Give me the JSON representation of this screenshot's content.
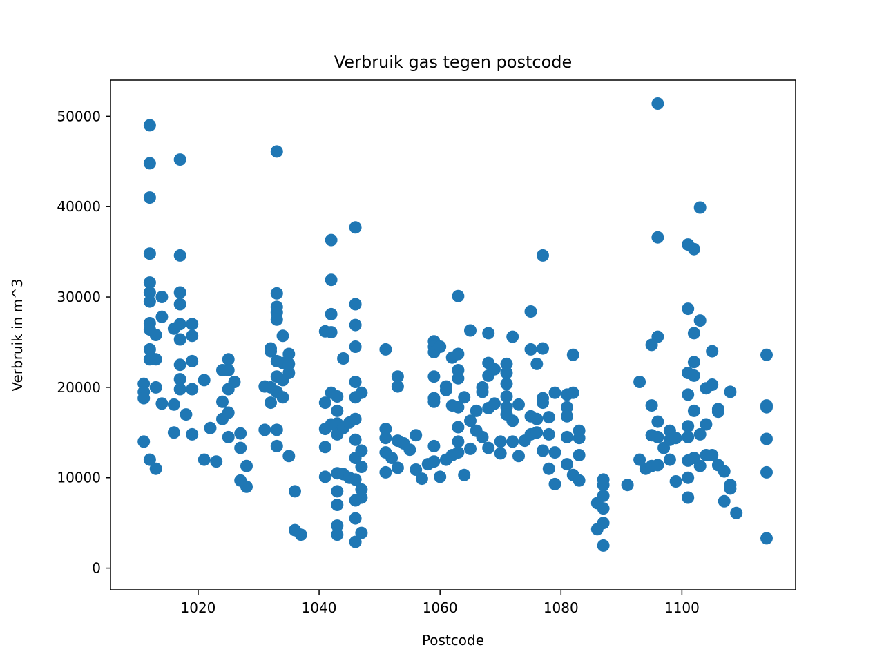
{
  "chart_data": {
    "type": "scatter",
    "title": "Verbruik gas tegen postcode",
    "xlabel": "Postcode",
    "ylabel": "Verbruik in m^3",
    "xlim": [
      1005.5,
      1118.8
    ],
    "ylim": [
      -2400,
      54000
    ],
    "xticks": [
      1020,
      1040,
      1060,
      1080,
      1100
    ],
    "yticks": [
      0,
      10000,
      20000,
      30000,
      40000,
      50000
    ],
    "grid": false,
    "legend": "none",
    "marker_color": "#1f77b4",
    "series": [
      {
        "points": [
          [
            1012,
            49000
          ],
          [
            1012,
            44800
          ],
          [
            1012,
            41000
          ],
          [
            1012,
            34800
          ],
          [
            1012,
            31600
          ],
          [
            1012,
            30500
          ],
          [
            1012,
            29500
          ],
          [
            1012,
            27100
          ],
          [
            1012,
            26400
          ],
          [
            1012,
            24200
          ],
          [
            1012,
            23100
          ],
          [
            1011,
            20400
          ],
          [
            1011,
            19500
          ],
          [
            1011,
            18800
          ],
          [
            1013,
            25800
          ],
          [
            1013,
            23100
          ],
          [
            1014,
            30000
          ],
          [
            1014,
            27800
          ],
          [
            1014,
            18200
          ],
          [
            1013,
            20000
          ],
          [
            1011,
            14000
          ],
          [
            1012,
            12000
          ],
          [
            1013,
            11000
          ],
          [
            1016,
            26500
          ],
          [
            1017,
            45200
          ],
          [
            1017,
            34600
          ],
          [
            1017,
            30500
          ],
          [
            1017,
            29200
          ],
          [
            1017,
            27000
          ],
          [
            1017,
            25300
          ],
          [
            1017,
            22500
          ],
          [
            1017,
            20900
          ],
          [
            1017,
            19800
          ],
          [
            1016,
            18100
          ],
          [
            1016,
            15000
          ],
          [
            1019,
            27000
          ],
          [
            1019,
            25700
          ],
          [
            1019,
            22900
          ],
          [
            1019,
            19800
          ],
          [
            1018,
            17000
          ],
          [
            1019,
            14800
          ],
          [
            1021,
            20800
          ],
          [
            1021,
            12000
          ],
          [
            1022,
            15500
          ],
          [
            1023,
            11800
          ],
          [
            1024,
            21900
          ],
          [
            1024,
            18400
          ],
          [
            1024,
            16500
          ],
          [
            1025,
            23100
          ],
          [
            1025,
            21900
          ],
          [
            1025,
            19800
          ],
          [
            1025,
            17200
          ],
          [
            1025,
            14500
          ],
          [
            1026,
            20600
          ],
          [
            1027,
            14900
          ],
          [
            1027,
            13300
          ],
          [
            1028,
            11300
          ],
          [
            1028,
            9000
          ],
          [
            1027,
            9700
          ],
          [
            1031,
            20100
          ],
          [
            1031,
            15300
          ],
          [
            1032,
            24300
          ],
          [
            1032,
            24000
          ],
          [
            1032,
            20000
          ],
          [
            1032,
            18300
          ],
          [
            1033,
            46100
          ],
          [
            1033,
            30400
          ],
          [
            1033,
            28900
          ],
          [
            1033,
            28300
          ],
          [
            1033,
            27500
          ],
          [
            1033,
            22900
          ],
          [
            1033,
            21200
          ],
          [
            1033,
            19500
          ],
          [
            1033,
            15300
          ],
          [
            1033,
            13500
          ],
          [
            1034,
            25700
          ],
          [
            1034,
            22700
          ],
          [
            1034,
            20800
          ],
          [
            1034,
            18900
          ],
          [
            1035,
            23700
          ],
          [
            1035,
            22600
          ],
          [
            1035,
            21600
          ],
          [
            1035,
            12400
          ],
          [
            1036,
            8500
          ],
          [
            1036,
            4200
          ],
          [
            1037,
            3700
          ],
          [
            1041,
            26200
          ],
          [
            1041,
            18300
          ],
          [
            1041,
            15400
          ],
          [
            1041,
            13400
          ],
          [
            1041,
            10100
          ],
          [
            1042,
            36300
          ],
          [
            1042,
            31900
          ],
          [
            1042,
            28100
          ],
          [
            1042,
            26100
          ],
          [
            1042,
            19400
          ],
          [
            1042,
            15900
          ],
          [
            1043,
            19000
          ],
          [
            1043,
            17400
          ],
          [
            1043,
            16000
          ],
          [
            1043,
            14800
          ],
          [
            1043,
            10500
          ],
          [
            1043,
            8500
          ],
          [
            1043,
            7000
          ],
          [
            1043,
            4700
          ],
          [
            1043,
            3700
          ],
          [
            1044,
            23200
          ],
          [
            1044,
            15500
          ],
          [
            1044,
            10400
          ],
          [
            1045,
            16100
          ],
          [
            1045,
            10000
          ],
          [
            1046,
            37700
          ],
          [
            1046,
            29200
          ],
          [
            1046,
            26900
          ],
          [
            1046,
            24500
          ],
          [
            1046,
            20600
          ],
          [
            1046,
            18900
          ],
          [
            1046,
            16500
          ],
          [
            1046,
            14200
          ],
          [
            1046,
            12200
          ],
          [
            1046,
            9800
          ],
          [
            1046,
            7500
          ],
          [
            1046,
            5500
          ],
          [
            1046,
            2900
          ],
          [
            1047,
            19400
          ],
          [
            1047,
            13000
          ],
          [
            1047,
            11200
          ],
          [
            1047,
            8700
          ],
          [
            1047,
            7800
          ],
          [
            1047,
            3900
          ],
          [
            1051,
            24200
          ],
          [
            1051,
            15400
          ],
          [
            1051,
            14400
          ],
          [
            1051,
            12800
          ],
          [
            1051,
            10600
          ],
          [
            1052,
            12200
          ],
          [
            1053,
            21200
          ],
          [
            1053,
            20100
          ],
          [
            1053,
            14100
          ],
          [
            1053,
            11100
          ],
          [
            1054,
            13800
          ],
          [
            1055,
            13100
          ],
          [
            1056,
            14700
          ],
          [
            1056,
            10900
          ],
          [
            1057,
            9900
          ],
          [
            1058,
            11500
          ],
          [
            1059,
            25100
          ],
          [
            1059,
            24500
          ],
          [
            1059,
            23900
          ],
          [
            1059,
            21200
          ],
          [
            1059,
            18800
          ],
          [
            1059,
            18400
          ],
          [
            1059,
            13500
          ],
          [
            1059,
            11800
          ],
          [
            1060,
            24500
          ],
          [
            1060,
            10100
          ],
          [
            1061,
            20100
          ],
          [
            1061,
            19700
          ],
          [
            1061,
            12000
          ],
          [
            1062,
            23300
          ],
          [
            1062,
            18000
          ],
          [
            1062,
            12500
          ],
          [
            1063,
            30100
          ],
          [
            1063,
            23700
          ],
          [
            1063,
            21900
          ],
          [
            1063,
            21000
          ],
          [
            1063,
            17800
          ],
          [
            1063,
            15600
          ],
          [
            1063,
            14000
          ],
          [
            1063,
            12800
          ],
          [
            1064,
            18900
          ],
          [
            1064,
            10300
          ],
          [
            1065,
            26300
          ],
          [
            1065,
            16300
          ],
          [
            1065,
            13200
          ],
          [
            1066,
            17400
          ],
          [
            1066,
            15200
          ],
          [
            1067,
            20000
          ],
          [
            1067,
            19500
          ],
          [
            1067,
            14500
          ],
          [
            1068,
            26000
          ],
          [
            1068,
            22700
          ],
          [
            1068,
            21300
          ],
          [
            1068,
            17700
          ],
          [
            1068,
            13300
          ],
          [
            1069,
            22000
          ],
          [
            1069,
            18200
          ],
          [
            1070,
            14000
          ],
          [
            1070,
            12700
          ],
          [
            1071,
            22600
          ],
          [
            1071,
            21600
          ],
          [
            1071,
            20400
          ],
          [
            1071,
            19000
          ],
          [
            1071,
            17800
          ],
          [
            1071,
            17000
          ],
          [
            1072,
            25600
          ],
          [
            1072,
            16300
          ],
          [
            1072,
            14000
          ],
          [
            1073,
            18100
          ],
          [
            1073,
            12400
          ],
          [
            1074,
            14100
          ],
          [
            1075,
            28400
          ],
          [
            1075,
            24200
          ],
          [
            1075,
            16800
          ],
          [
            1075,
            14800
          ],
          [
            1076,
            22600
          ],
          [
            1076,
            16500
          ],
          [
            1076,
            15000
          ],
          [
            1077,
            34600
          ],
          [
            1077,
            24300
          ],
          [
            1077,
            18800
          ],
          [
            1077,
            18300
          ],
          [
            1077,
            13000
          ],
          [
            1078,
            16700
          ],
          [
            1078,
            14800
          ],
          [
            1078,
            11000
          ],
          [
            1079,
            19400
          ],
          [
            1079,
            12800
          ],
          [
            1079,
            9300
          ],
          [
            1081,
            19200
          ],
          [
            1081,
            17800
          ],
          [
            1081,
            16800
          ],
          [
            1081,
            14500
          ],
          [
            1081,
            11500
          ],
          [
            1082,
            23600
          ],
          [
            1082,
            19400
          ],
          [
            1082,
            10300
          ],
          [
            1083,
            15200
          ],
          [
            1083,
            14400
          ],
          [
            1083,
            12500
          ],
          [
            1083,
            9700
          ],
          [
            1087,
            9800
          ],
          [
            1087,
            9200
          ],
          [
            1087,
            8000
          ],
          [
            1087,
            6600
          ],
          [
            1087,
            5000
          ],
          [
            1086,
            7200
          ],
          [
            1086,
            4300
          ],
          [
            1087,
            2500
          ],
          [
            1091,
            9200
          ],
          [
            1093,
            20600
          ],
          [
            1093,
            12000
          ],
          [
            1094,
            11000
          ],
          [
            1095,
            24700
          ],
          [
            1095,
            18000
          ],
          [
            1095,
            14700
          ],
          [
            1095,
            11300
          ],
          [
            1096,
            51400
          ],
          [
            1096,
            36600
          ],
          [
            1096,
            25600
          ],
          [
            1096,
            16200
          ],
          [
            1096,
            14500
          ],
          [
            1096,
            11400
          ],
          [
            1097,
            13300
          ],
          [
            1098,
            15200
          ],
          [
            1098,
            14200
          ],
          [
            1098,
            12000
          ],
          [
            1099,
            14400
          ],
          [
            1099,
            9600
          ],
          [
            1101,
            35800
          ],
          [
            1101,
            28700
          ],
          [
            1101,
            21600
          ],
          [
            1101,
            19200
          ],
          [
            1101,
            15700
          ],
          [
            1101,
            14500
          ],
          [
            1101,
            11900
          ],
          [
            1101,
            10000
          ],
          [
            1101,
            7800
          ],
          [
            1102,
            35300
          ],
          [
            1102,
            26000
          ],
          [
            1102,
            22800
          ],
          [
            1102,
            21300
          ],
          [
            1102,
            17400
          ],
          [
            1102,
            12200
          ],
          [
            1103,
            39900
          ],
          [
            1103,
            27400
          ],
          [
            1103,
            14800
          ],
          [
            1103,
            11300
          ],
          [
            1104,
            19900
          ],
          [
            1104,
            15900
          ],
          [
            1104,
            12500
          ],
          [
            1105,
            24000
          ],
          [
            1105,
            20300
          ],
          [
            1105,
            12500
          ],
          [
            1106,
            17600
          ],
          [
            1106,
            17300
          ],
          [
            1106,
            11400
          ],
          [
            1107,
            10700
          ],
          [
            1107,
            7400
          ],
          [
            1108,
            19500
          ],
          [
            1108,
            9200
          ],
          [
            1108,
            8800
          ],
          [
            1109,
            6100
          ],
          [
            1114,
            23600
          ],
          [
            1114,
            18000
          ],
          [
            1114,
            17800
          ],
          [
            1114,
            14300
          ],
          [
            1114,
            10600
          ],
          [
            1114,
            3300
          ]
        ]
      }
    ]
  }
}
